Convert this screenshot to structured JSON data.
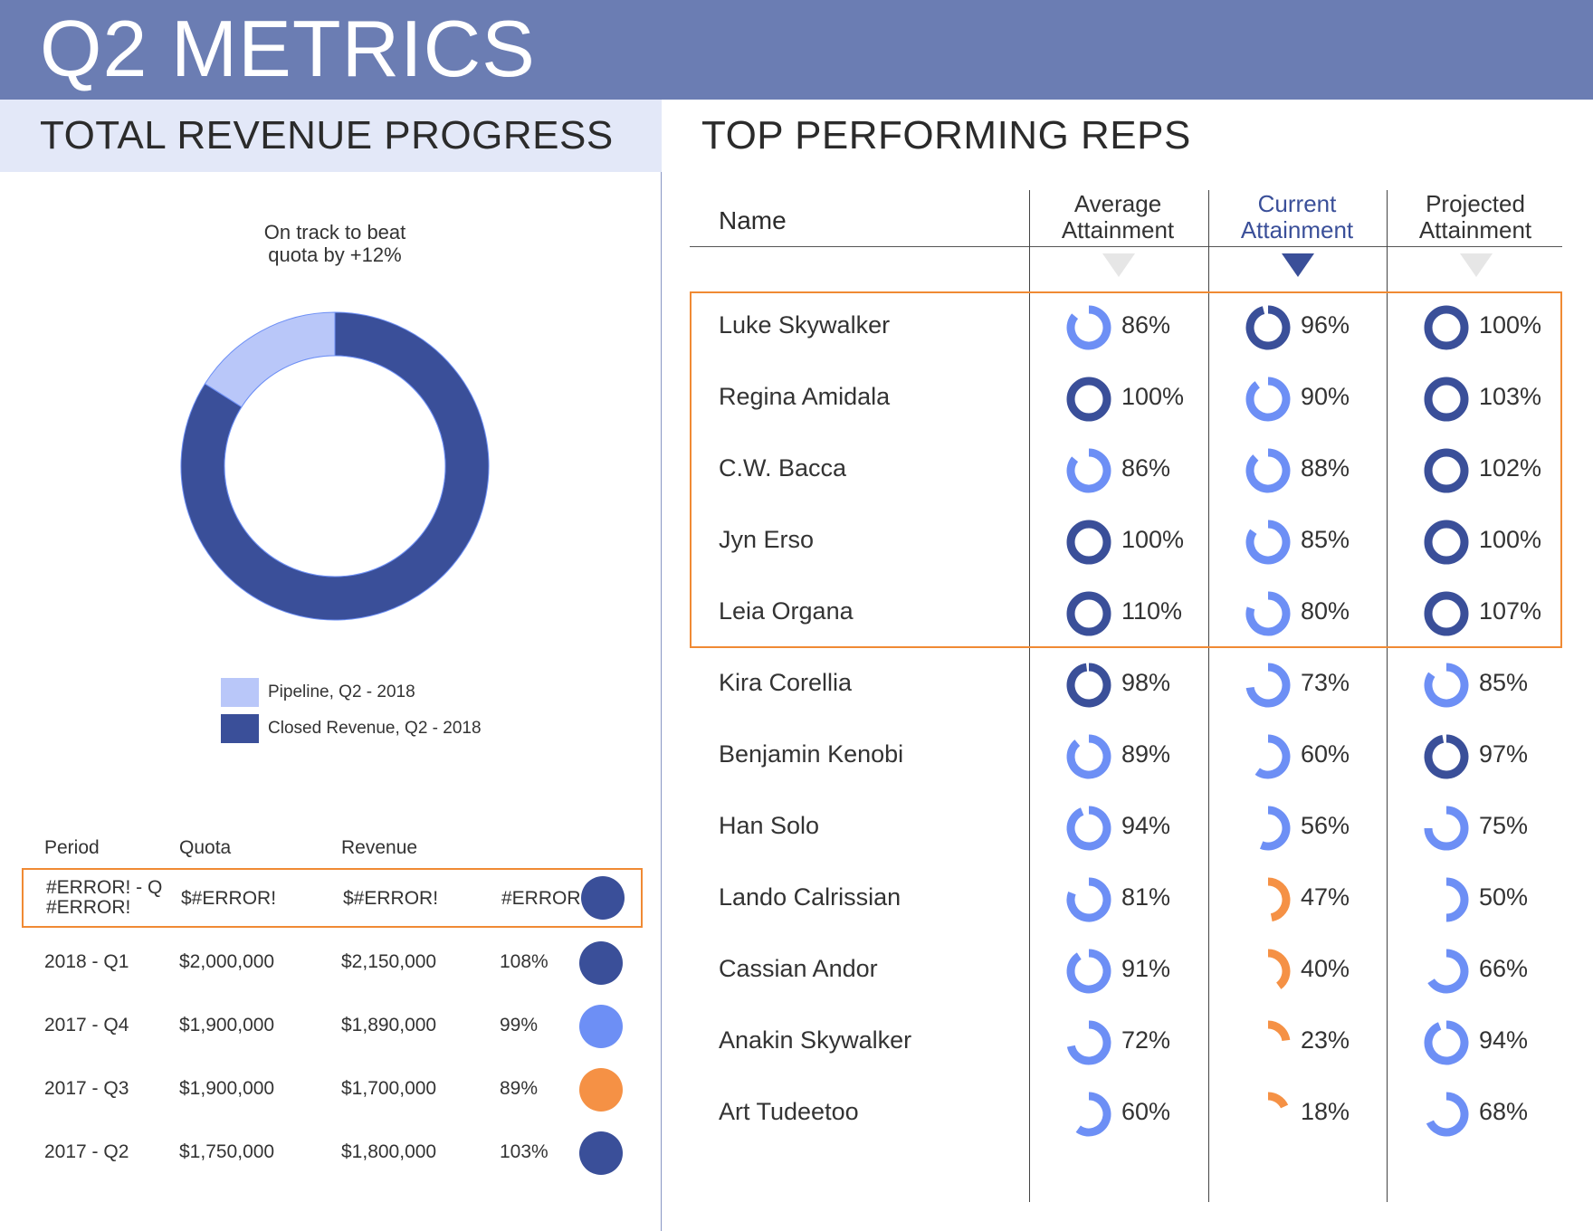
{
  "page": {
    "title": "Q2 METRICS"
  },
  "colors": {
    "banner": "#6b7db3",
    "dark": "#3a4f99",
    "mid": "#6d8ff5",
    "light": "#b9c7f9",
    "orange": "#f59145",
    "gray": "#e6e6e6"
  },
  "left": {
    "title": "TOTAL REVENUE PROGRESS",
    "caption": "On track to beat\nquota by +12%",
    "chart_data": {
      "type": "pie",
      "style": "donut",
      "title": "On track to beat quota by +12%",
      "slices": [
        {
          "label": "Closed Revenue, Q2 - 2018",
          "value": 84,
          "color": "#3a4f99"
        },
        {
          "label": "Pipeline, Q2 - 2018",
          "value": 16,
          "color": "#b9c7f9"
        }
      ]
    },
    "legend": [
      {
        "label": "Pipeline, Q2 - 2018",
        "color": "#b9c7f9"
      },
      {
        "label": "Closed Revenue, Q2 - 2018",
        "color": "#3a4f99"
      }
    ],
    "table": {
      "headers": {
        "period": "Period",
        "quota": "Quota",
        "revenue": "Revenue"
      },
      "rows": [
        {
          "period": "#ERROR! - Q #ERROR!",
          "quota": "$#ERROR!",
          "revenue": "$#ERROR!",
          "pct": "#ERROR!",
          "dot": "dark",
          "highlight": true
        },
        {
          "period": "2018 - Q1",
          "quota": "$2,000,000",
          "revenue": "$2,150,000",
          "pct": "108%",
          "dot": "dark"
        },
        {
          "period": "2017 - Q4",
          "quota": "$1,900,000",
          "revenue": "$1,890,000",
          "pct": "99%",
          "dot": "mid"
        },
        {
          "period": "2017 - Q3",
          "quota": "$1,900,000",
          "revenue": "$1,700,000",
          "pct": "89%",
          "dot": "orange"
        },
        {
          "period": "2017 - Q2",
          "quota": "$1,750,000",
          "revenue": "$1,800,000",
          "pct": "103%",
          "dot": "dark"
        }
      ]
    }
  },
  "right": {
    "title": "TOP PERFORMING REPS",
    "headers": {
      "name": "Name",
      "average": "Average\nAttainment",
      "current": "Current\nAttainment",
      "projected": "Projected\nAttainment"
    },
    "sorted_column": "current",
    "reps": [
      {
        "name": "Luke Skywalker",
        "avg": 86,
        "cur": 96,
        "proj": 100
      },
      {
        "name": "Regina Amidala",
        "avg": 100,
        "cur": 90,
        "proj": 103
      },
      {
        "name": "C.W. Bacca",
        "avg": 86,
        "cur": 88,
        "proj": 102
      },
      {
        "name": "Jyn Erso",
        "avg": 100,
        "cur": 85,
        "proj": 100
      },
      {
        "name": "Leia Organa",
        "avg": 110,
        "cur": 80,
        "proj": 107
      },
      {
        "name": "Kira Corellia",
        "avg": 98,
        "cur": 73,
        "proj": 85
      },
      {
        "name": "Benjamin Kenobi",
        "avg": 89,
        "cur": 60,
        "proj": 97
      },
      {
        "name": "Han Solo",
        "avg": 94,
        "cur": 56,
        "proj": 75
      },
      {
        "name": "Lando Calrissian",
        "avg": 81,
        "cur": 47,
        "proj": 50
      },
      {
        "name": "Cassian Andor",
        "avg": 91,
        "cur": 40,
        "proj": 66
      },
      {
        "name": "Anakin Skywalker",
        "avg": 72,
        "cur": 23,
        "proj": 94
      },
      {
        "name": "Art Tudeetoo",
        "avg": 60,
        "cur": 18,
        "proj": 68
      }
    ],
    "highlight_top_n": 5
  }
}
